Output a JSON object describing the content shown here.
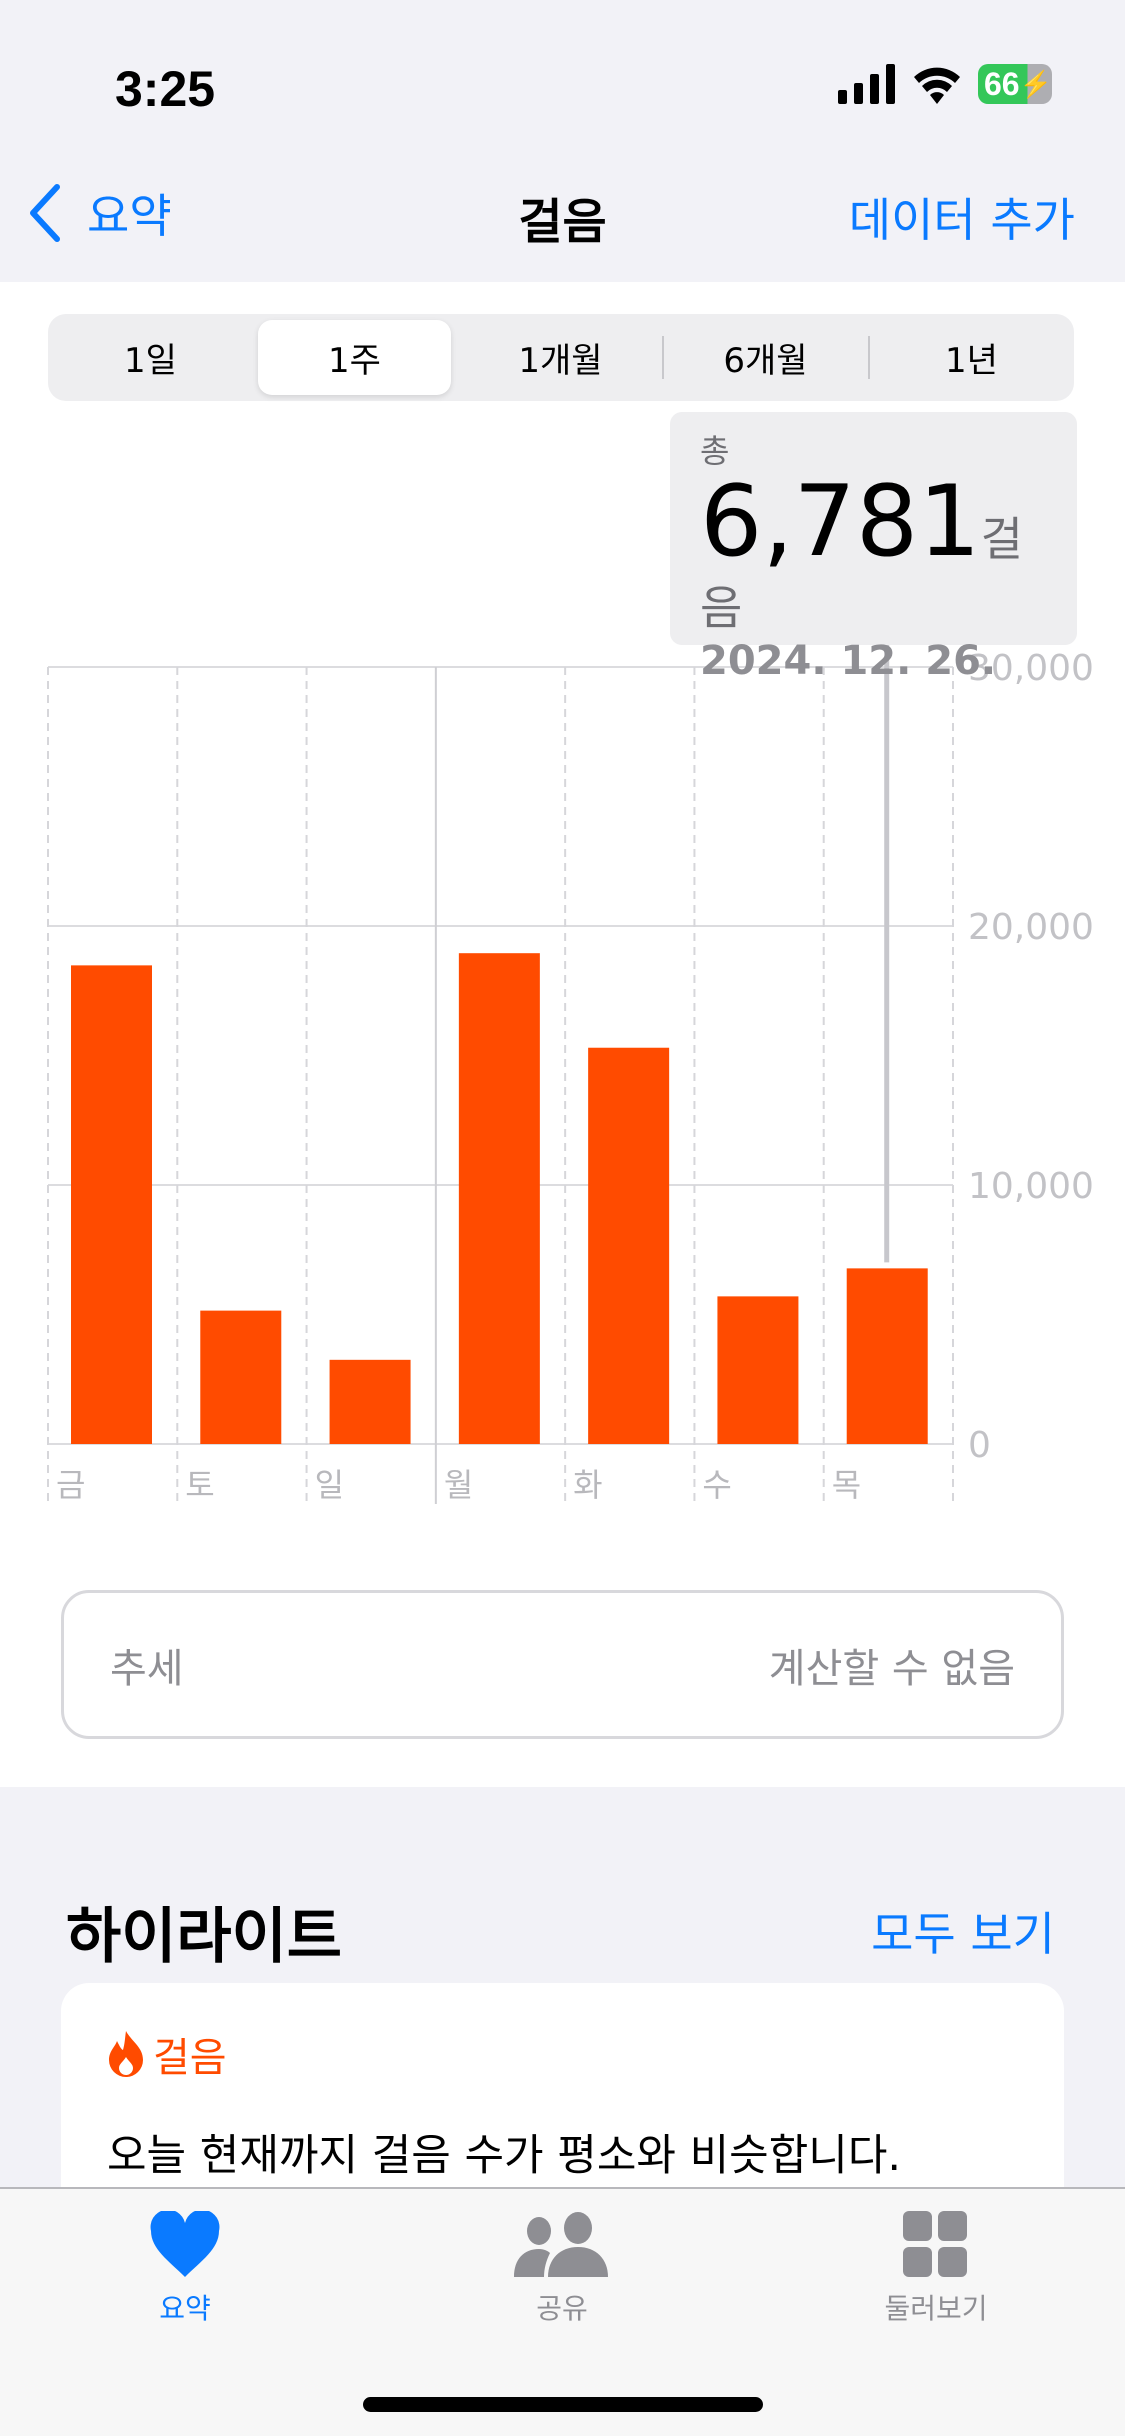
{
  "status": {
    "time": "3:25",
    "battery": "66"
  },
  "nav": {
    "back": "요약",
    "title": "걸음",
    "add": "데이터 추가"
  },
  "segments": [
    {
      "label": "1일",
      "selected": false
    },
    {
      "label": "1주",
      "selected": true
    },
    {
      "label": "1개월",
      "selected": false
    },
    {
      "label": "6개월",
      "selected": false
    },
    {
      "label": "1년",
      "selected": false
    }
  ],
  "tooltip": {
    "label": "총",
    "value": "6,781",
    "unit": "걸음",
    "date": "2024. 12. 26."
  },
  "chart_data": {
    "type": "bar",
    "categories": [
      "금",
      "토",
      "일",
      "월",
      "화",
      "수",
      "목"
    ],
    "values": [
      18480,
      5150,
      3250,
      18950,
      15300,
      5700,
      6781
    ],
    "ylim": [
      0,
      30000
    ],
    "yticks": [
      "0",
      "10,000",
      "20,000",
      "30,000"
    ],
    "grid": true,
    "color": "#ff4b00",
    "selected_index": 6
  },
  "trend": {
    "label": "추세",
    "value": "계산할 수 없음"
  },
  "highlights": {
    "title": "하이라이트",
    "see_all": "모두 보기",
    "card": {
      "category": "걸음",
      "text": "오늘 현재까지 걸음 수가 평소와 비슷합니다."
    }
  },
  "tabs": [
    {
      "label": "요약",
      "icon": "heart-icon",
      "active": true
    },
    {
      "label": "공유",
      "icon": "people-icon",
      "active": false
    },
    {
      "label": "둘러보기",
      "icon": "grid-icon",
      "active": false
    }
  ],
  "colors": {
    "accent": "#0a7aff",
    "bar": "#ff4b00"
  }
}
